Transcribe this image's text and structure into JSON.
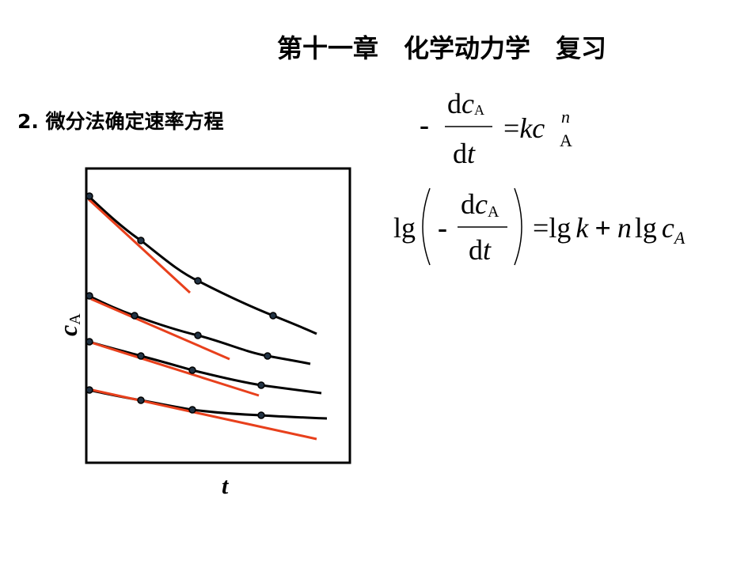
{
  "header": {
    "title": "第十一章　化学动力学　复习"
  },
  "section": {
    "heading": "2. 微分法确定速率方程"
  },
  "equation_1": {
    "minus": "-",
    "num_d": "d",
    "num_c": "c",
    "num_sub": "A",
    "den_d": "d",
    "den_t": "t",
    "equals": "=",
    "k": "k",
    "c": "c",
    "sup": "n",
    "sub": "A"
  },
  "equation_2": {
    "lg": "lg",
    "minus": "-",
    "num_d": "d",
    "num_c": "c",
    "num_sub": "A",
    "den_d": "d",
    "den_t": "t",
    "equals": "=",
    "rhs_lg1": "lg",
    "k": "k",
    "plus": "+",
    "n": "n",
    "rhs_lg2": "lg",
    "c": "c",
    "sub": "A"
  },
  "diagram": {
    "y_label": "c",
    "y_label_sub": "A",
    "x_label": "t"
  }
}
